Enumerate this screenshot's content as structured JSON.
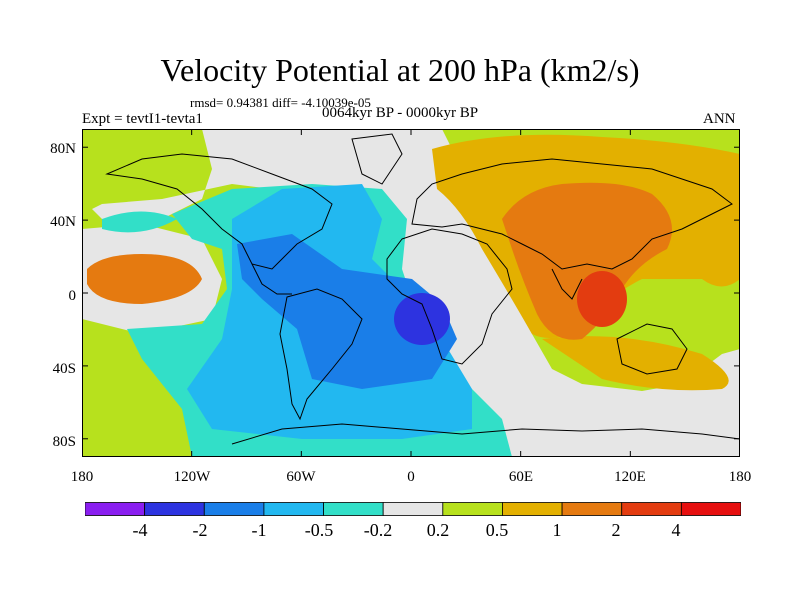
{
  "title": "Velocity Potential at 200 hPa (km2/s)",
  "stats_line": "rmsd= 0.94381 diff= -4.10039e-05",
  "expt_label": "Expt = tevtI1-tevta1",
  "period_label": "0064kyr BP - 0000kyr BP",
  "season_label": "ANN",
  "y_axis_ticks": [
    {
      "label": "80N",
      "lat": 80
    },
    {
      "label": "40N",
      "lat": 40
    },
    {
      "label": "0",
      "lat": 0
    },
    {
      "label": "40S",
      "lat": -40
    },
    {
      "label": "80S",
      "lat": -80
    }
  ],
  "x_axis_ticks": [
    {
      "label": "180",
      "lon": -180
    },
    {
      "label": "120W",
      "lon": -120
    },
    {
      "label": "60W",
      "lon": -60
    },
    {
      "label": "0",
      "lon": 0
    },
    {
      "label": "60E",
      "lon": 60
    },
    {
      "label": "120E",
      "lon": 120
    },
    {
      "label": "180",
      "lon": 180
    }
  ],
  "colorbar": {
    "labels": [
      "-4",
      "-2",
      "-1",
      "-0.5",
      "-0.2",
      "0.2",
      "0.5",
      "1",
      "2",
      "4"
    ],
    "colors": [
      "#8a1ef0",
      "#2d33e0",
      "#1a7ee8",
      "#22b8f0",
      "#32dfc8",
      "#e6e6e6",
      "#b7e11d",
      "#e3b000",
      "#e57a10",
      "#e33c10",
      "#e60f0f"
    ]
  },
  "map_colors": {
    "background": "#b7e11d",
    "neutral": "#e6e6e6",
    "teal": "#32dfc8",
    "light_blue": "#22b8f0",
    "blue": "#1a7ee8",
    "deep_blue": "#2d33e0",
    "gold": "#e3b000",
    "orange": "#e57a10",
    "red_orange": "#e33c10"
  }
}
